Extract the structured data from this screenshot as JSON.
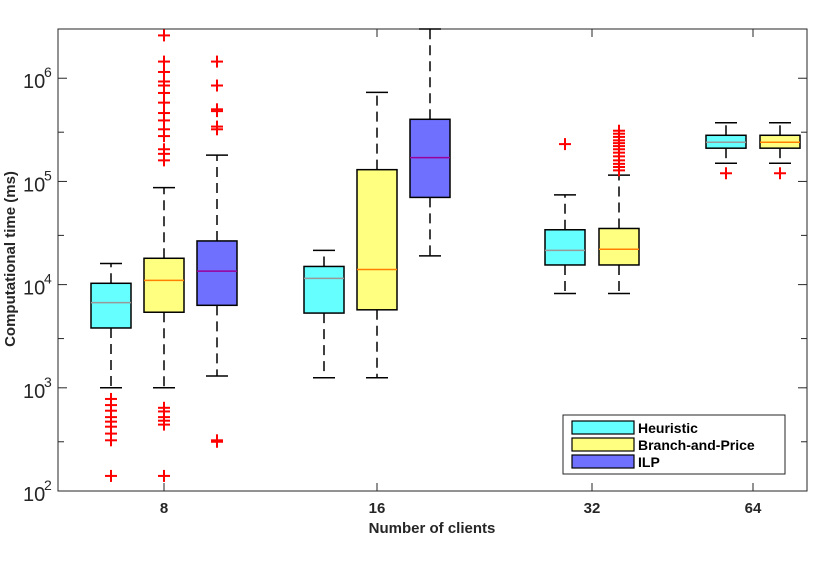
{
  "chart_data": {
    "type": "box",
    "title": "",
    "xlabel": "Number of clients",
    "ylabel": "Computational time (ms)",
    "yscale": "log",
    "ylim": [
      100,
      3000000
    ],
    "yticks": [
      {
        "value": 100,
        "base": "10",
        "exp": "2"
      },
      {
        "value": 1000,
        "base": "10",
        "exp": "3"
      },
      {
        "value": 10000,
        "base": "10",
        "exp": "4"
      },
      {
        "value": 100000,
        "base": "10",
        "exp": "5"
      },
      {
        "value": 1000000,
        "base": "10",
        "exp": "6"
      }
    ],
    "categories": [
      "8",
      "16",
      "32",
      "64"
    ],
    "legend_position": "bottom-right",
    "series": [
      {
        "name": "Heuristic",
        "color": "#66ffff",
        "median_color": "#999999",
        "groups": [
          {
            "category": "8",
            "whisker_low": 1000,
            "q1": 3800,
            "median": 6700,
            "q3": 10300,
            "whisker_high": 16000,
            "outliers": [
              780,
              680,
              600,
              520,
              470,
              420,
              360,
              310,
              140
            ]
          },
          {
            "category": "16",
            "whisker_low": 1250,
            "q1": 5300,
            "median": 11500,
            "q3": 15000,
            "whisker_high": 21500,
            "outliers": []
          },
          {
            "category": "32",
            "whisker_low": 8200,
            "q1": 15500,
            "median": 21500,
            "q3": 34000,
            "whisker_high": 74000,
            "outliers": [
              230000
            ]
          },
          {
            "category": "64",
            "whisker_low": 150000,
            "q1": 210000,
            "median": 240000,
            "q3": 280000,
            "whisker_high": 370000,
            "outliers": [
              120000
            ]
          }
        ]
      },
      {
        "name": "Branch-and-Price",
        "color": "#ffff80",
        "median_color": "#ff8000",
        "groups": [
          {
            "category": "8",
            "whisker_low": 1000,
            "q1": 5400,
            "median": 11000,
            "q3": 18000,
            "whisker_high": 87000,
            "outliers": [
              2600000,
              1450000,
              1150000,
              930000,
              850000,
              720000,
              580000,
              460000,
              390000,
              320000,
              275000,
              205000,
              185000,
              160000,
              640,
              590,
              520,
              480,
              440,
              140
            ]
          },
          {
            "category": "16",
            "whisker_low": 1250,
            "q1": 5700,
            "median": 14000,
            "q3": 130000,
            "whisker_high": 730000,
            "outliers": []
          },
          {
            "category": "32",
            "whisker_low": 8200,
            "q1": 15500,
            "median": 22000,
            "q3": 35000,
            "whisker_high": 115000,
            "outliers": [
              310000,
              290000,
              270000,
              250000,
              235000,
              220000,
              205000,
              190000,
              175000,
              160000,
              148000,
              138000,
              128000
            ]
          },
          {
            "category": "64",
            "whisker_low": 150000,
            "q1": 210000,
            "median": 240000,
            "q3": 280000,
            "whisker_high": 370000,
            "outliers": [
              120000
            ]
          }
        ]
      },
      {
        "name": "ILP",
        "color": "#7070ff",
        "median_color": "#990099",
        "groups": [
          {
            "category": "8",
            "whisker_low": 1300,
            "q1": 6300,
            "median": 13500,
            "q3": 26500,
            "whisker_high": 180000,
            "outliers": [
              1450000,
              850000,
              500000,
              480000,
              340000,
              320000,
              300,
              310
            ]
          },
          {
            "category": "16",
            "whisker_low": 19000,
            "q1": 70000,
            "median": 170000,
            "q3": 400000,
            "whisker_high": 3000000,
            "outliers": []
          }
        ]
      }
    ]
  }
}
